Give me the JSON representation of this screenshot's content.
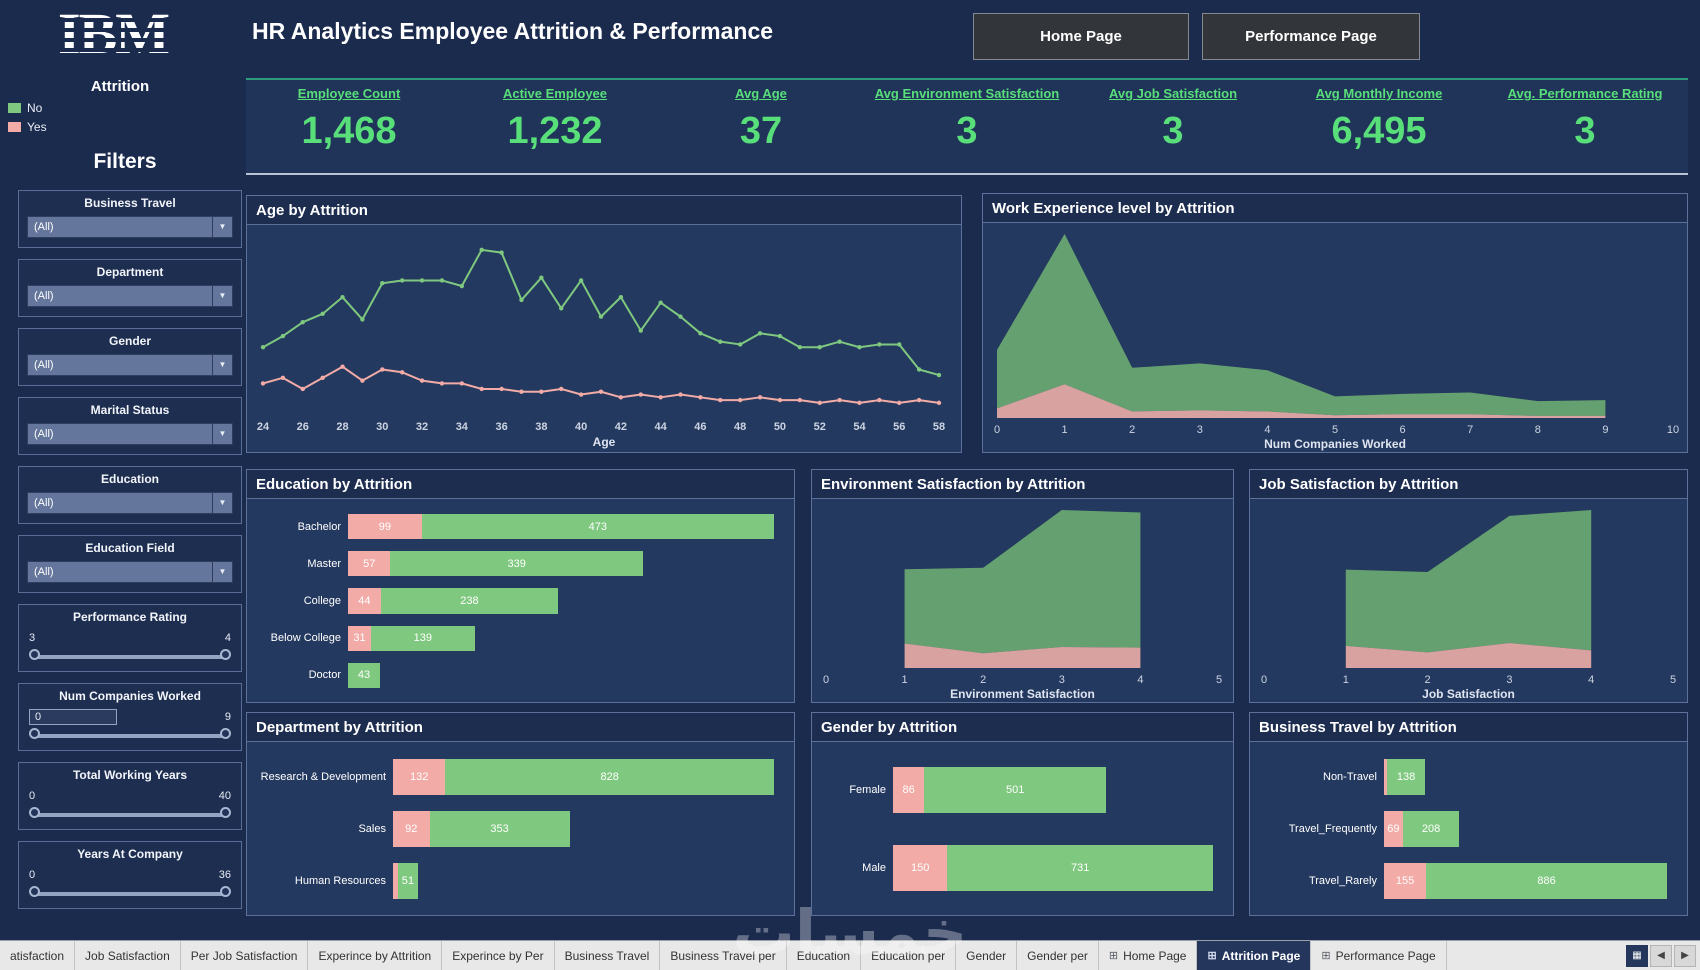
{
  "app": {
    "logo_text": "IBM",
    "watermark_text": "خمسات"
  },
  "header": {
    "title": "HR Analytics Employee Attrition & Performance",
    "nav_buttons": [
      {
        "label": "Home Page"
      },
      {
        "label": "Performance Page"
      }
    ]
  },
  "attrition_legend": {
    "title": "Attrition",
    "items": [
      {
        "label": "No",
        "color": "#7fc87f"
      },
      {
        "label": "Yes",
        "color": "#f2aba6"
      }
    ]
  },
  "filters": {
    "title": "Filters",
    "dropdowns": [
      {
        "label": "Business Travel",
        "value": "(All)"
      },
      {
        "label": "Department",
        "value": "(All)"
      },
      {
        "label": "Gender",
        "value": "(All)"
      },
      {
        "label": "Marital Status",
        "value": "(All)"
      },
      {
        "label": "Education",
        "value": "(All)"
      },
      {
        "label": "Education Field",
        "value": "(All)"
      }
    ],
    "sliders": [
      {
        "label": "Performance Rating",
        "min": "3",
        "max": "4",
        "boxed_min": false
      },
      {
        "label": "Num Companies Worked",
        "min": "0",
        "max": "9",
        "boxed_min": true
      },
      {
        "label": "Total Working Years",
        "min": "0",
        "max": "40",
        "boxed_min": false
      },
      {
        "label": "Years At Company",
        "min": "0",
        "max": "36",
        "boxed_min": false
      }
    ]
  },
  "kpis": [
    {
      "label": "Employee Count",
      "value": "1,468"
    },
    {
      "label": "Active Employee",
      "value": "1,232"
    },
    {
      "label": "Avg Age",
      "value": "37"
    },
    {
      "label": "Avg Environment Satisfaction",
      "value": "3"
    },
    {
      "label": "Avg Job Satisfaction",
      "value": "3"
    },
    {
      "label": "Avg Monthly Income",
      "value": "6,495"
    },
    {
      "label": "Avg. Performance Rating",
      "value": "3"
    }
  ],
  "colors": {
    "no": "#7fc87f",
    "yes": "#f2aba6",
    "area_no": "#69a671",
    "area_yes": "#e2a8a3",
    "kpi_green": "#58df7a",
    "tick": "#ccd4e2",
    "axis_label": "#dfe5f0"
  },
  "chart_data": [
    {
      "id": "age",
      "type": "line",
      "title": "Age by Attrition",
      "xlabel": "Age",
      "x_ticks": [
        24,
        26,
        28,
        30,
        32,
        34,
        36,
        38,
        40,
        42,
        44,
        46,
        48,
        50,
        52,
        54,
        56,
        58
      ],
      "x": [
        24,
        25,
        26,
        27,
        28,
        29,
        30,
        31,
        32,
        33,
        34,
        35,
        36,
        37,
        38,
        39,
        40,
        41,
        42,
        43,
        44,
        45,
        46,
        47,
        48,
        49,
        50,
        51,
        52,
        53,
        54,
        55,
        56,
        57,
        58
      ],
      "series": [
        {
          "name": "No",
          "color": "#7fc87f",
          "values": [
            24,
            28,
            33,
            36,
            42,
            34,
            47,
            48,
            48,
            48,
            46,
            59,
            58,
            41,
            49,
            38,
            48,
            35,
            42,
            30,
            40,
            35,
            29,
            26,
            25,
            29,
            28,
            24,
            24,
            26,
            24,
            25,
            25,
            16,
            14
          ]
        },
        {
          "name": "Yes",
          "color": "#f2aba6",
          "values": [
            11,
            13,
            9,
            13,
            17,
            12,
            16,
            15,
            12,
            11,
            11,
            9,
            9,
            8,
            8,
            9,
            7,
            8,
            6,
            7,
            6,
            7,
            6,
            5,
            5,
            6,
            5,
            5,
            4,
            5,
            4,
            5,
            4,
            5,
            4
          ]
        }
      ]
    },
    {
      "id": "workexp",
      "type": "area",
      "title": "Work Experience level by Attrition",
      "xlabel": "Num Companies Worked",
      "x_ticks": [
        0,
        1,
        2,
        3,
        4,
        5,
        6,
        7,
        8,
        9,
        10
      ],
      "x": [
        0,
        1,
        2,
        3,
        4,
        5,
        6,
        7,
        8,
        9
      ],
      "series": [
        {
          "name": "Yes",
          "color": "#e2a8a3",
          "values": [
            28,
            98,
            19,
            22,
            19,
            8,
            11,
            11,
            6,
            6
          ]
        },
        {
          "name": "No",
          "color": "#69a671",
          "values": [
            170,
            437,
            127,
            137,
            120,
            55,
            59,
            63,
            43,
            46
          ]
        }
      ]
    },
    {
      "id": "education",
      "type": "bars",
      "title": "Education by Attrition",
      "label_width": 95,
      "categories": [
        "Bachelor",
        "Master",
        "College",
        "Below College",
        "Doctor"
      ],
      "series": [
        {
          "name": "Yes",
          "color": "#f2aba6",
          "values": [
            99,
            57,
            44,
            31,
            null
          ]
        },
        {
          "name": "No",
          "color": "#7fc87f",
          "values": [
            473,
            339,
            238,
            139,
            43
          ]
        }
      ]
    },
    {
      "id": "envsat",
      "type": "area",
      "title": "Environment Satisfaction by Attrition",
      "xlabel": "Environment Satisfaction",
      "x_ticks": [
        0,
        1,
        2,
        3,
        4,
        5
      ],
      "x": [
        1,
        2,
        3,
        4
      ],
      "series": [
        {
          "name": "Yes",
          "color": "#e2a8a3",
          "values": [
            70,
            42,
            60,
            58
          ]
        },
        {
          "name": "No",
          "color": "#69a671",
          "values": [
            212,
            244,
            391,
            386
          ]
        }
      ]
    },
    {
      "id": "jobsat",
      "type": "area",
      "title": "Job Satisfaction by Attrition",
      "xlabel": "Job Satisfaction",
      "x_ticks": [
        0,
        1,
        2,
        3,
        4,
        5
      ],
      "x": [
        1,
        2,
        3,
        4
      ],
      "series": [
        {
          "name": "Yes",
          "color": "#e2a8a3",
          "values": [
            64,
            45,
            72,
            51
          ]
        },
        {
          "name": "No",
          "color": "#69a671",
          "values": [
            220,
            232,
            367,
            405
          ]
        }
      ]
    },
    {
      "id": "department",
      "type": "bars",
      "title": "Department by Attrition",
      "label_width": 140,
      "categories": [
        "Research & Development",
        "Sales",
        "Human Resources"
      ],
      "series": [
        {
          "name": "Yes",
          "color": "#f2aba6",
          "values": [
            132,
            92,
            12
          ]
        },
        {
          "name": "No",
          "color": "#7fc87f",
          "values": [
            828,
            353,
            51
          ]
        }
      ]
    },
    {
      "id": "gender",
      "type": "bars",
      "title": "Gender by Attrition",
      "label_width": 75,
      "categories": [
        "Female",
        "Male"
      ],
      "series": [
        {
          "name": "Yes",
          "color": "#f2aba6",
          "values": [
            86,
            150
          ]
        },
        {
          "name": "No",
          "color": "#7fc87f",
          "values": [
            501,
            731
          ]
        }
      ]
    },
    {
      "id": "travel",
      "type": "bars",
      "title": "Business Travel by Attrition",
      "label_width": 128,
      "categories": [
        "Non-Travel",
        "Travel_Frequently",
        "Travel_Rarely"
      ],
      "series": [
        {
          "name": "Yes",
          "color": "#f2aba6",
          "values": [
            12,
            69,
            155
          ]
        },
        {
          "name": "No",
          "color": "#7fc87f",
          "values": [
            138,
            208,
            886
          ]
        }
      ]
    }
  ],
  "tabbar": {
    "tabs": [
      {
        "label": "atisfaction",
        "icon": false,
        "active": false
      },
      {
        "label": "Job Satisfaction",
        "icon": false,
        "active": false
      },
      {
        "label": "Per Job Satisfaction",
        "icon": false,
        "active": false
      },
      {
        "label": "Experince by Attrition",
        "icon": false,
        "active": false
      },
      {
        "label": "Experince by Per",
        "icon": false,
        "active": false
      },
      {
        "label": "Business Travel",
        "icon": false,
        "active": false
      },
      {
        "label": "Business Travel per",
        "icon": false,
        "active": false
      },
      {
        "label": "Education",
        "icon": false,
        "active": false
      },
      {
        "label": "Education per",
        "icon": false,
        "active": false
      },
      {
        "label": "Gender",
        "icon": false,
        "active": false
      },
      {
        "label": "Gender per",
        "icon": false,
        "active": false
      },
      {
        "label": "Home Page",
        "icon": true,
        "active": false
      },
      {
        "label": "Attrition Page",
        "icon": true,
        "active": true
      },
      {
        "label": "Performance Page",
        "icon": true,
        "active": false
      }
    ],
    "controls": [
      {
        "glyph": "▦",
        "name": "show-all-tabs-icon",
        "dark": true
      },
      {
        "glyph": "◀",
        "name": "scroll-tabs-left-icon",
        "dark": false
      },
      {
        "glyph": "▶",
        "name": "scroll-tabs-right-icon",
        "dark": false
      }
    ]
  }
}
